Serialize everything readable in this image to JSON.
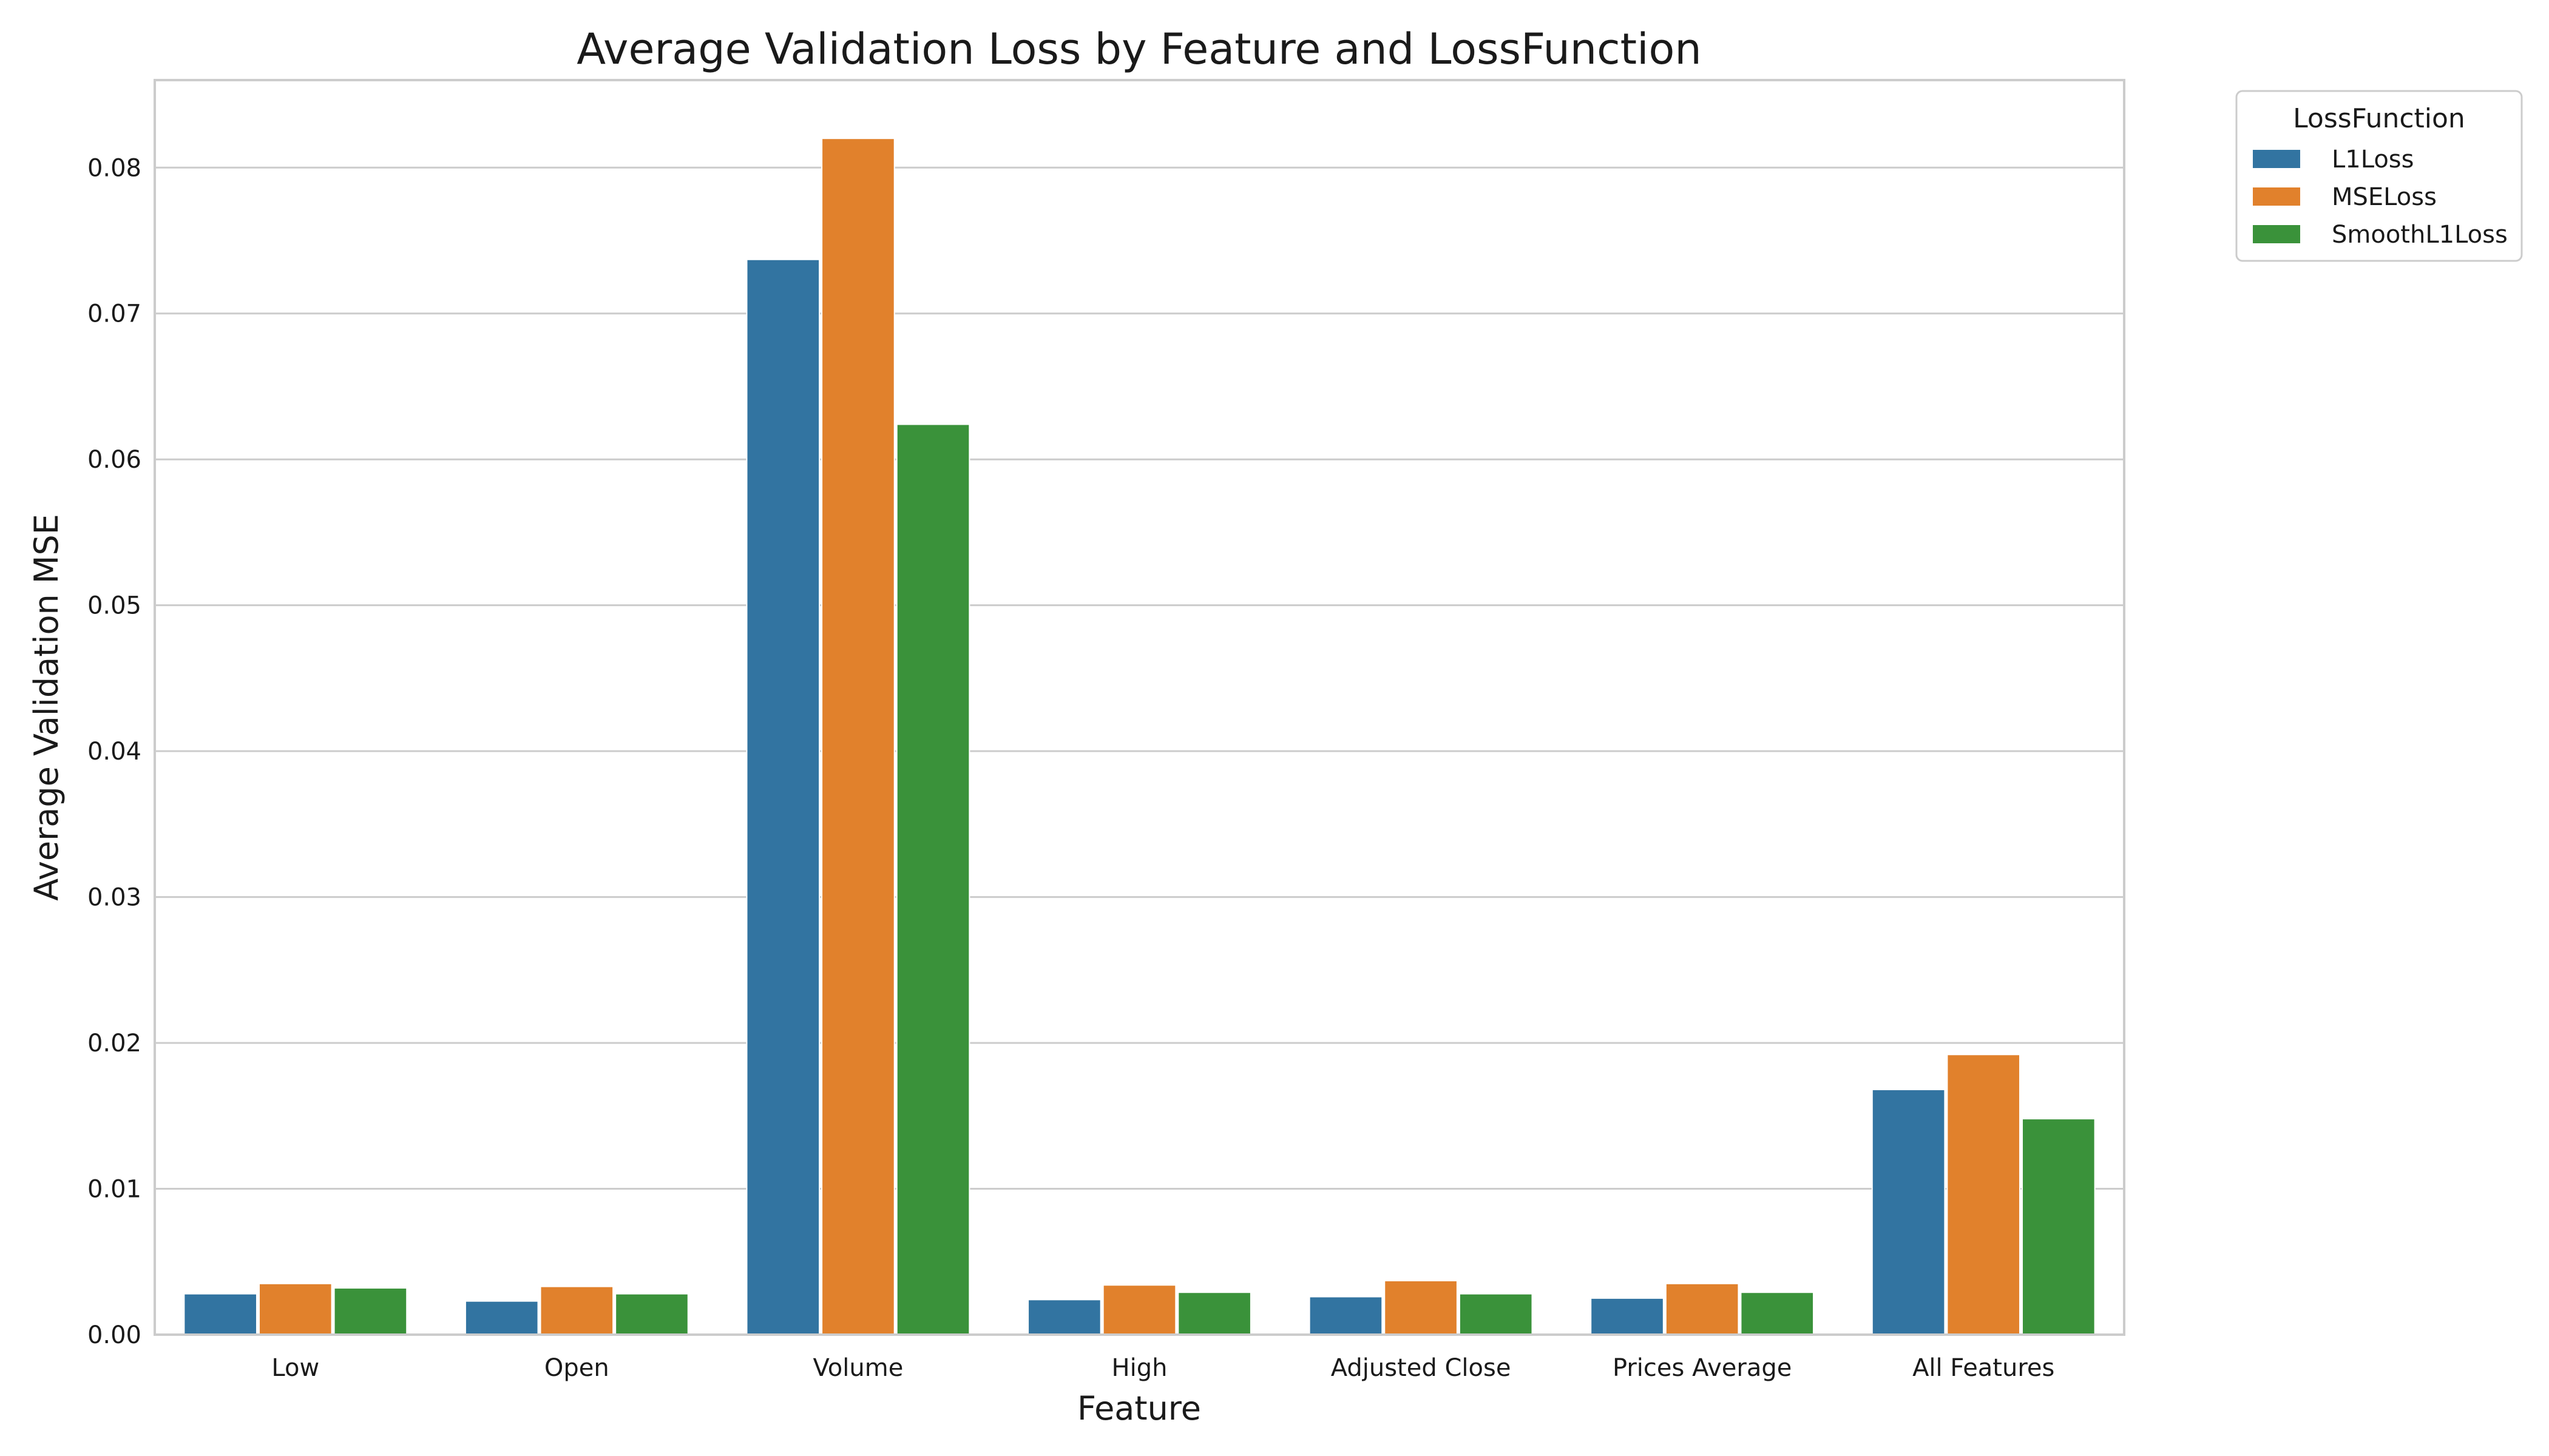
{
  "chart_data": {
    "type": "bar",
    "title": "Average Validation Loss by Feature and LossFunction",
    "xlabel": "Feature",
    "ylabel": "Average Validation MSE",
    "categories": [
      "Low",
      "Open",
      "Volume",
      "High",
      "Adjusted Close",
      "Prices Average",
      "All Features"
    ],
    "series": [
      {
        "name": "L1Loss",
        "color": "#3274a1",
        "values": [
          0.0028,
          0.0023,
          0.0737,
          0.0024,
          0.0026,
          0.0025,
          0.0168
        ]
      },
      {
        "name": "MSELoss",
        "color": "#e1812c",
        "values": [
          0.0035,
          0.0033,
          0.082,
          0.0034,
          0.0037,
          0.0035,
          0.0192
        ]
      },
      {
        "name": "SmoothL1Loss",
        "color": "#3a923a",
        "values": [
          0.0032,
          0.0028,
          0.0624,
          0.0029,
          0.0028,
          0.0029,
          0.0148
        ]
      }
    ],
    "ylim": [
      0,
      0.086
    ],
    "yticks": [
      "0.00",
      "0.01",
      "0.02",
      "0.03",
      "0.04",
      "0.05",
      "0.06",
      "0.07",
      "0.08"
    ],
    "grid": true,
    "legend": {
      "title": "LossFunction",
      "placement": "outside-top-right"
    }
  }
}
